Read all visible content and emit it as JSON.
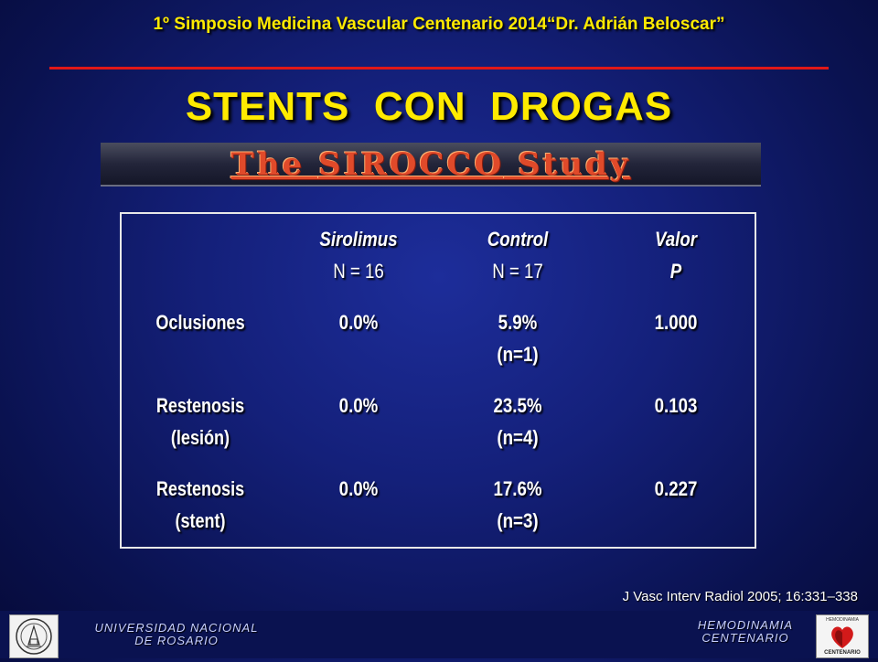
{
  "header": {
    "title": "1º Simposio Medicina Vascular Centenario 2014“Dr. Adrián Beloscar”"
  },
  "slide": {
    "title": "STENTS  CON  DROGAS",
    "banner": {
      "prefix": "The ",
      "study": "SIROCCO",
      "suffix": " Study"
    }
  },
  "table": {
    "columns": [
      {
        "line1": "",
        "line2": ""
      },
      {
        "line1": "Sirolimus",
        "line2": "N = 16"
      },
      {
        "line1": "Control",
        "line2": "N = 17"
      },
      {
        "line1": "Valor",
        "line2": "P"
      }
    ],
    "rows": [
      {
        "label1": "Oclusiones",
        "label2": "",
        "sirolimus": "0.0%",
        "control1": "5.9%",
        "control2": "(n=1)",
        "p": "1.000"
      },
      {
        "label1": "Restenosis",
        "label2": "(lesión)",
        "sirolimus": "0.0%",
        "control1": "23.5%",
        "control2": "(n=4)",
        "p": "0.103"
      },
      {
        "label1": "Restenosis",
        "label2": "(stent)",
        "sirolimus": "0.0%",
        "control1": "17.6%",
        "control2": "(n=3)",
        "p": "0.227"
      }
    ]
  },
  "citation": "J Vasc Interv Radiol 2005; 16:331–338",
  "footer": {
    "left_line1": "UNIVERSIDAD NACIONAL",
    "left_line2": "DE ROSARIO",
    "right_line1": "HEMODINAMIA",
    "right_line2": "CENTENARIO",
    "right_logo_text": "CENTENARIO",
    "right_logo_top": "HEMODINAMIA"
  },
  "colors": {
    "title_yellow": "#ffea00",
    "rule_red": "#e01818",
    "background_blue": "#14207a"
  }
}
